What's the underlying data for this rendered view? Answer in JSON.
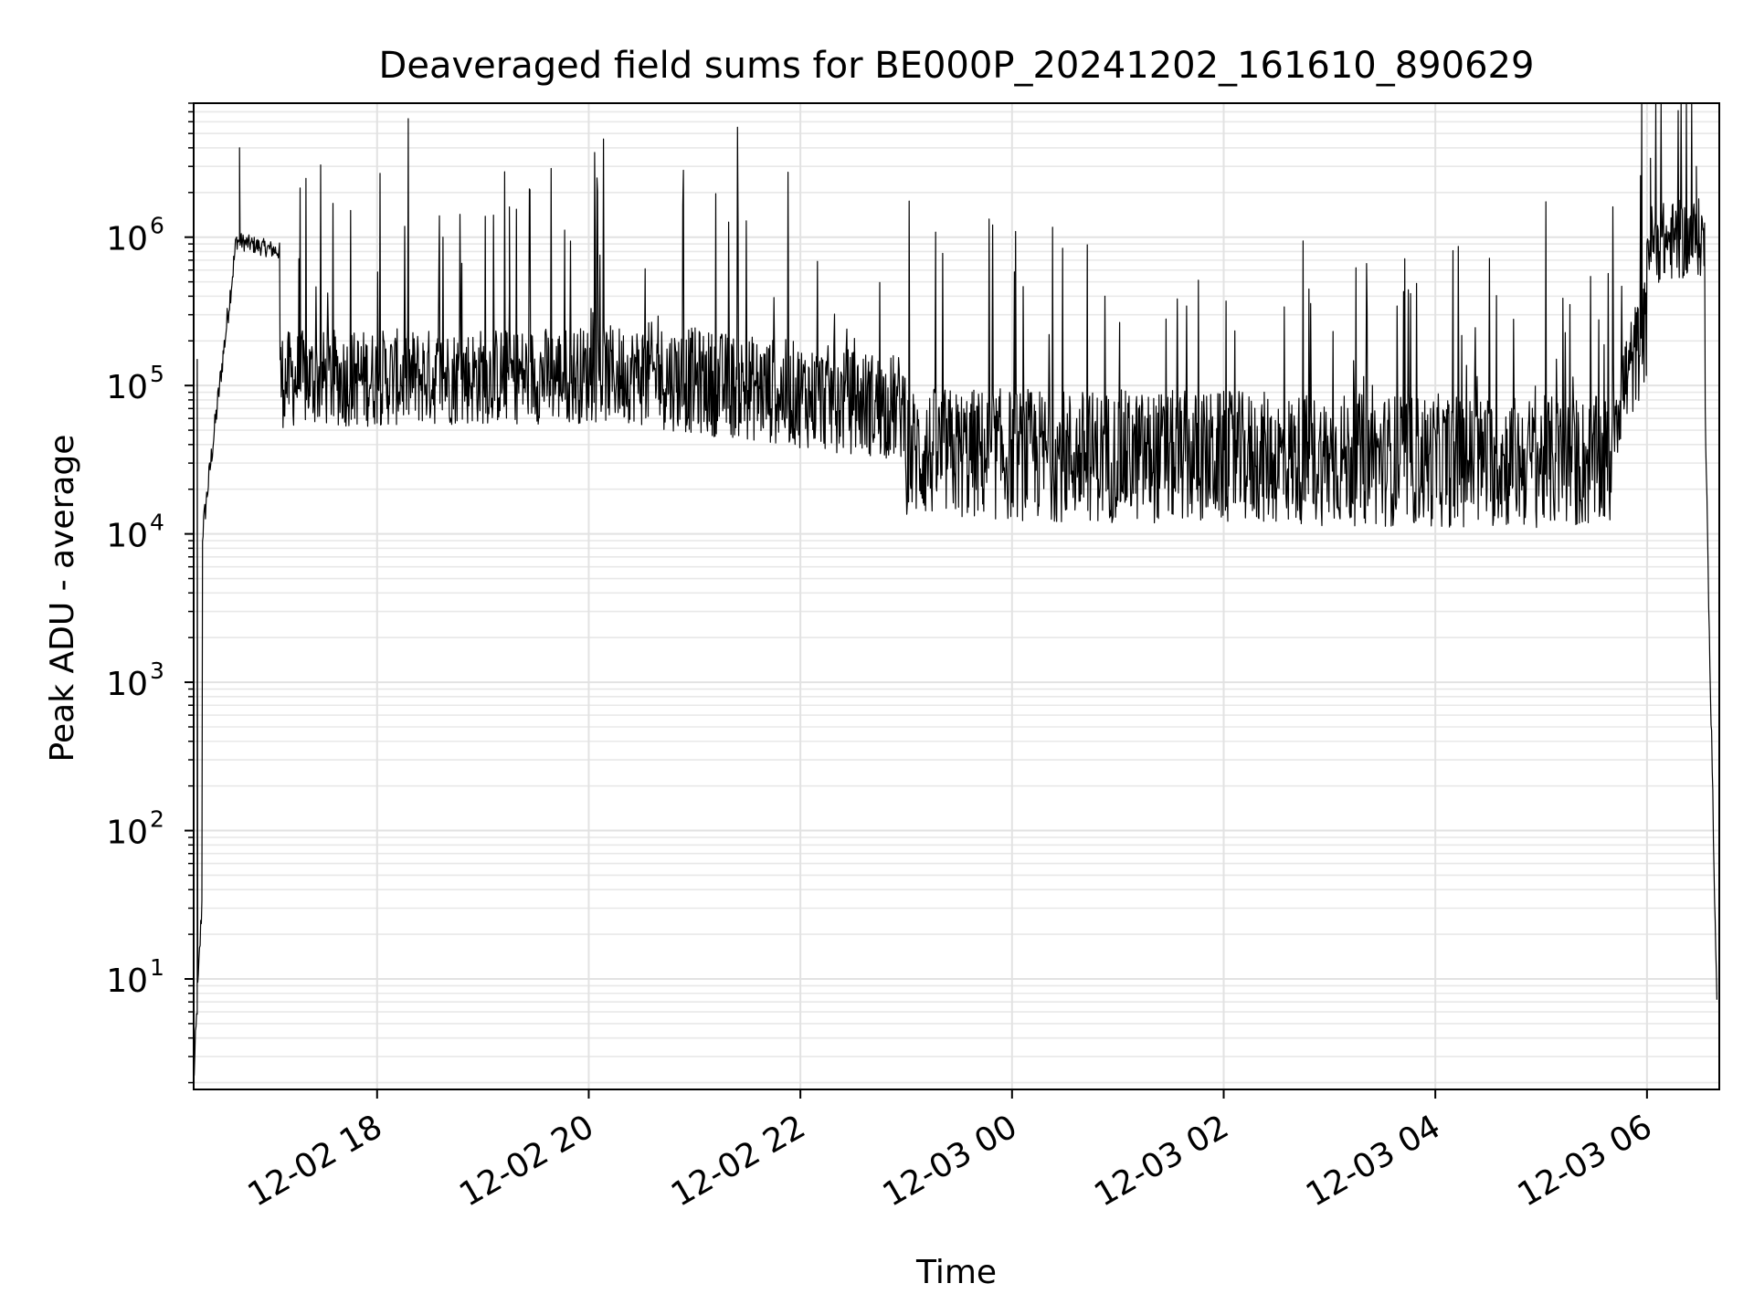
{
  "chart_data": {
    "type": "line",
    "title": "Deaveraged field sums for BE000P_20241202_161610_890629",
    "xlabel": "Time",
    "ylabel": "Peak ADU - average",
    "yscale": "log",
    "ylim": [
      1.8,
      8000000
    ],
    "xlim": [
      "2024-12-02 16:16",
      "2024-12-03 06:41"
    ],
    "grid": {
      "major": true,
      "minor_y": true
    },
    "line_color": "#000000",
    "x_ticks": [
      {
        "t": "2024-12-02 18:00",
        "label": "12-02 18"
      },
      {
        "t": "2024-12-02 20:00",
        "label": "12-02 20"
      },
      {
        "t": "2024-12-02 22:00",
        "label": "12-02 22"
      },
      {
        "t": "2024-12-03 00:00",
        "label": "12-03 00"
      },
      {
        "t": "2024-12-03 02:00",
        "label": "12-03 02"
      },
      {
        "t": "2024-12-03 04:00",
        "label": "12-03 04"
      },
      {
        "t": "2024-12-03 06:00",
        "label": "12-03 06"
      }
    ],
    "y_ticks": [
      {
        "v": 10,
        "base": "10",
        "exp": "1"
      },
      {
        "v": 100,
        "base": "10",
        "exp": "2"
      },
      {
        "v": 1000,
        "base": "10",
        "exp": "3"
      },
      {
        "v": 10000,
        "base": "10",
        "exp": "4"
      },
      {
        "v": 100000,
        "base": "10",
        "exp": "5"
      },
      {
        "v": 1000000,
        "base": "10",
        "exp": "6"
      }
    ],
    "series": [
      {
        "segments": [
          {
            "start": "2024-12-02 16:16",
            "end": "2024-12-02 16:21",
            "base_start": 2,
            "base_end": 40,
            "spread": 0.3
          },
          {
            "start": "2024-12-02 16:21",
            "end": "2024-12-02 16:40",
            "base_start": 10000,
            "base_end": 900000,
            "spread": 0.3
          },
          {
            "start": "2024-12-02 16:40",
            "end": "2024-12-02 17:05",
            "base_start": 950000,
            "base_end": 800000,
            "spread": 0.2
          },
          {
            "start": "2024-12-02 17:05",
            "end": "2024-12-02 20:30",
            "base_start": 110000,
            "base_end": 120000,
            "spread": 1.1
          },
          {
            "start": "2024-12-02 20:30",
            "end": "2024-12-02 23:00",
            "base_start": 120000,
            "base_end": 70000,
            "spread": 1.2
          },
          {
            "start": "2024-12-02 23:00",
            "end": "2024-12-03 05:40",
            "base_start": 35000,
            "base_end": 30000,
            "spread": 1.5
          },
          {
            "start": "2024-12-03 05:40",
            "end": "2024-12-03 06:00",
            "base_start": 60000,
            "base_end": 250000,
            "spread": 1.2
          },
          {
            "start": "2024-12-03 06:00",
            "end": "2024-12-03 06:33",
            "base_start": 900000,
            "base_end": 1000000,
            "spread": 0.9
          },
          {
            "start": "2024-12-03 06:33",
            "end": "2024-12-03 06:40",
            "base_start": 60000,
            "base_end": 4,
            "spread": 0.3
          }
        ],
        "notable_points": [
          {
            "t": "2024-12-02 16:18",
            "v": 150000
          },
          {
            "t": "2024-12-02 16:42",
            "v": 4000000
          },
          {
            "t": "2024-12-02 19:15",
            "v": 1600000
          },
          {
            "t": "2024-12-03 06:02",
            "v": 3400000
          },
          {
            "t": "2024-12-03 06:28",
            "v": 3000000
          }
        ]
      }
    ]
  }
}
